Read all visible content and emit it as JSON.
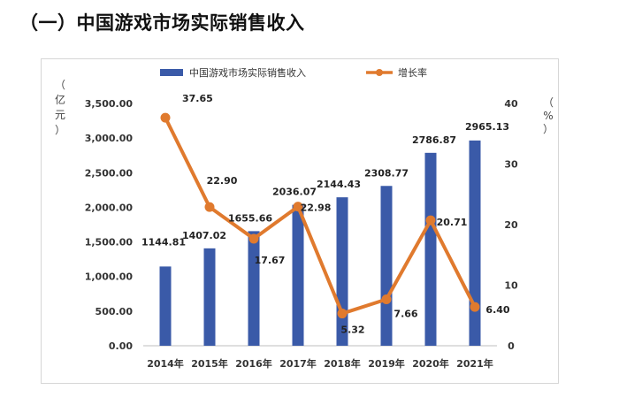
{
  "heading": "（一）中国游戏市场实际销售收入",
  "colors": {
    "bar": "#3a5aa8",
    "line": "#e07a2e"
  },
  "chart_data": {
    "type": "bar+line",
    "categories": [
      "2014年",
      "2015年",
      "2016年",
      "2017年",
      "2018年",
      "2019年",
      "2020年",
      "2021年"
    ],
    "series": [
      {
        "name": "中国游戏市场实际销售收入",
        "type": "bar",
        "axis": "left",
        "values": [
          1144.81,
          1407.02,
          1655.66,
          2036.07,
          2144.43,
          2308.77,
          2786.87,
          2965.13
        ],
        "labels": [
          "1144.81",
          "1407.02",
          "1655.66",
          "2036.07",
          "2144.43",
          "2308.77",
          "2786.87",
          "2965.13"
        ]
      },
      {
        "name": "增长率",
        "type": "line",
        "axis": "right",
        "values": [
          37.65,
          22.9,
          17.67,
          22.98,
          5.32,
          7.66,
          20.71,
          6.4
        ],
        "labels": [
          "37.65",
          "22.90",
          "17.67",
          "22.98",
          "5.32",
          "7.66",
          "20.71",
          "6.40"
        ]
      }
    ],
    "y_left": {
      "label": "（亿元）",
      "ylim": [
        0,
        3500
      ],
      "ticks": [
        0,
        500,
        1000,
        1500,
        2000,
        2500,
        3000,
        3500
      ],
      "tick_labels": [
        "0.00",
        "500.00",
        "1,000.00",
        "1,500.00",
        "2,000.00",
        "2,500.00",
        "3,000.00",
        "3,500.00"
      ]
    },
    "y_right": {
      "label": "（%）",
      "ylim": [
        0,
        40
      ],
      "ticks": [
        0,
        10,
        20,
        30,
        40
      ],
      "tick_labels": [
        "0",
        "10",
        "20",
        "30",
        "40"
      ]
    },
    "legend_position": "top",
    "grid": false
  }
}
